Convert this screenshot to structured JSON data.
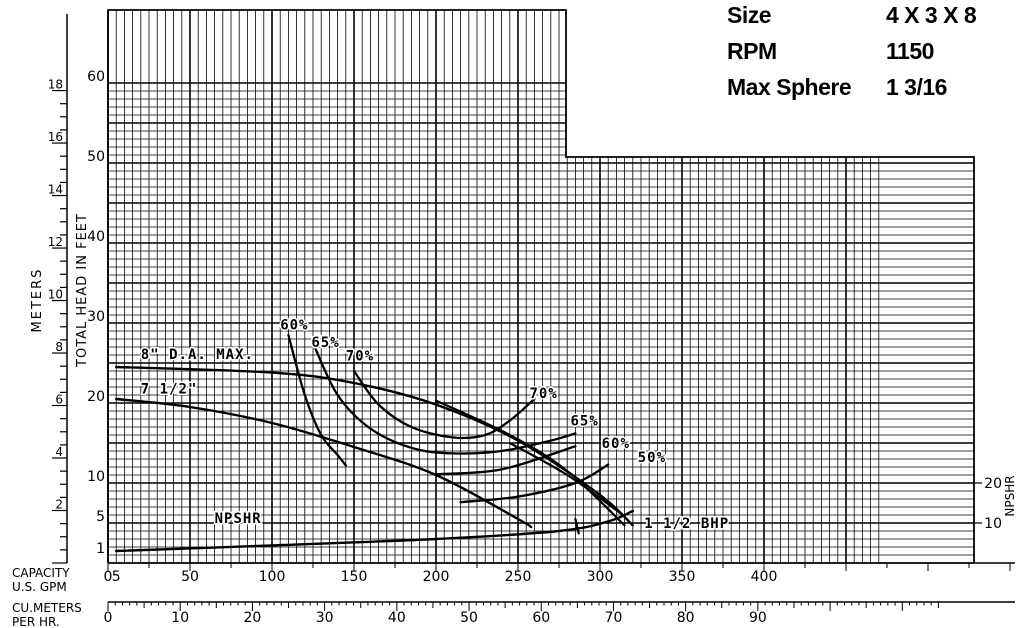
{
  "pump_info": {
    "size_label": "Size",
    "size_value": "4 X 3 X 8",
    "rpm_label": "RPM",
    "rpm_value": "1150",
    "sphere_label": "Max Sphere",
    "sphere_value": "1 3/16"
  },
  "chart_data": {
    "type": "line",
    "xlabel": "CAPACITY U.S. GPM",
    "x2label": "CU.METERS PER HR.",
    "ylabel": "TOTAL HEAD IN FEET",
    "y2label": "METERS",
    "y3label": "NPSHR",
    "xlim": [
      0,
      470
    ],
    "ylim": [
      0,
      60
    ],
    "x_ticks": [
      "0",
      "5",
      "50",
      "100",
      "150",
      "200",
      "250",
      "300",
      "350",
      "400"
    ],
    "x_tick_values": [
      0,
      5,
      50,
      100,
      150,
      200,
      250,
      300,
      350,
      400
    ],
    "y_ticks": [
      "1",
      "5",
      "10",
      "20",
      "30",
      "40",
      "50",
      "60"
    ],
    "y_tick_values": [
      1,
      5,
      10,
      20,
      30,
      40,
      50,
      60
    ],
    "meter_ticks": [
      "2",
      "4",
      "6",
      "8",
      "10",
      "12",
      "14",
      "16",
      "18"
    ],
    "meter_tick_values": [
      2,
      4,
      6,
      8,
      10,
      12,
      14,
      16,
      18
    ],
    "cum_ticks": [
      "0",
      "10",
      "20",
      "30",
      "40",
      "50",
      "60",
      "70",
      "80",
      "90"
    ],
    "cum_tick_values": [
      0,
      10,
      20,
      30,
      40,
      50,
      60,
      70,
      80,
      90
    ],
    "npsh_ticks": [
      "10",
      "20"
    ],
    "npsh_tick_values": [
      10,
      20
    ],
    "grid": true,
    "series": [
      {
        "name": "8\" D.A. MAX.",
        "kind": "head",
        "x": [
          5,
          100,
          150,
          200,
          250,
          300,
          320
        ],
        "y": [
          24.5,
          23.8,
          22.5,
          19.8,
          15.3,
          8.5,
          4.7
        ]
      },
      {
        "name": "7 1/2\"",
        "kind": "head",
        "x": [
          5,
          50,
          100,
          150,
          200,
          250,
          258
        ],
        "y": [
          20.5,
          19.5,
          17.5,
          14.5,
          11.0,
          5.5,
          4.5
        ]
      },
      {
        "name": "60%",
        "kind": "efficiency",
        "x": [
          110,
          120,
          130,
          140,
          145
        ],
        "y": [
          28.5,
          21.0,
          16.0,
          13.5,
          12.2
        ]
      },
      {
        "name": "65%",
        "kind": "efficiency",
        "x": [
          125,
          140,
          160,
          185,
          210,
          240,
          270,
          285
        ],
        "y": [
          27.5,
          21.0,
          16.8,
          14.4,
          13.7,
          14.0,
          15.3,
          16.2
        ]
      },
      {
        "name": "70%",
        "kind": "efficiency",
        "x": [
          150,
          165,
          185,
          210,
          230,
          245,
          260
        ],
        "y": [
          24.0,
          19.8,
          17.0,
          15.7,
          16.0,
          17.8,
          20.5
        ]
      },
      {
        "name": "65%",
        "kind": "efficiency",
        "x": [
          200,
          240,
          285
        ],
        "y": [
          11.1,
          11.7,
          14.6
        ]
      },
      {
        "name": "60%",
        "kind": "efficiency",
        "x": [
          215,
          250,
          285,
          305
        ],
        "y": [
          7.6,
          8.3,
          10.0,
          12.3
        ]
      },
      {
        "name": "NPSHR",
        "kind": "npshr",
        "x": [
          5,
          100,
          200,
          275,
          305,
          320
        ],
        "y": [
          1.5,
          2.2,
          3.0,
          4.0,
          5.2,
          6.5
        ]
      },
      {
        "name": "1 1/2 BHP",
        "kind": "bhp",
        "x": [
          200,
          245,
          280,
          315
        ],
        "y": [
          20.3,
          16.0,
          11.5,
          4.7
        ]
      },
      {
        "name": "",
        "kind": "bhp",
        "x": [
          245,
          280,
          312
        ],
        "y": [
          15.0,
          11.0,
          6.3
        ]
      },
      {
        "name": "",
        "kind": "bhp",
        "x": [
          285,
          287
        ],
        "y": [
          5.5,
          3.7
        ]
      }
    ],
    "annotations": [
      {
        "text": "8\" D.A. MAX.",
        "x": 20,
        "y": 25.5
      },
      {
        "text": "7 1/2\"",
        "x": 20,
        "y": 21.2
      },
      {
        "text": "60%",
        "x": 105,
        "y": 29.2
      },
      {
        "text": "65%",
        "x": 124,
        "y": 27.0
      },
      {
        "text": "70%",
        "x": 145,
        "y": 25.3
      },
      {
        "text": "70%",
        "x": 257,
        "y": 20.6
      },
      {
        "text": "65%",
        "x": 282,
        "y": 17.2
      },
      {
        "text": "60%",
        "x": 301,
        "y": 14.4
      },
      {
        "text": "50%",
        "x": 323,
        "y": 12.6
      },
      {
        "text": "NPSHR",
        "x": 65,
        "y": 5.0
      },
      {
        "text": "1 1/2 BHP",
        "x": 327,
        "y": 4.4
      }
    ]
  }
}
